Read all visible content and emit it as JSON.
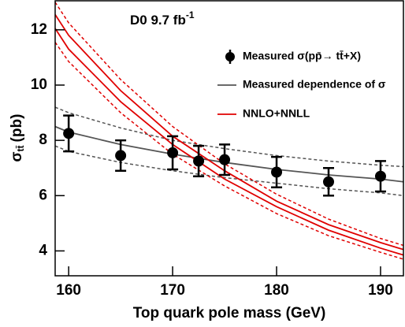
{
  "chart_data": {
    "type": "line",
    "title": "D0 9.7 fb",
    "title_superscript": "-1",
    "x_label": "Top quark pole mass (GeV)",
    "y_label": {
      "symbol": "σ",
      "subscript": "tt̄",
      "unit": "(pb)"
    },
    "xlim": [
      158.7,
      192.2
    ],
    "ylim": [
      3.1,
      13.05
    ],
    "xticks": [
      160,
      170,
      180,
      190
    ],
    "yticks": [
      4,
      6,
      8,
      10,
      12
    ],
    "points": {
      "name": "Measured σ(pp̄→ tt̄+X)",
      "color": "#000000",
      "x": [
        160,
        165,
        170,
        172.5,
        175,
        180,
        185,
        190
      ],
      "values": [
        8.25,
        7.45,
        7.55,
        7.25,
        7.3,
        6.85,
        6.5,
        6.7
      ],
      "errors": [
        0.65,
        0.55,
        0.6,
        0.55,
        0.55,
        0.55,
        0.5,
        0.55
      ]
    },
    "curve_x": [
      158.7,
      160,
      165,
      170,
      175,
      180,
      185,
      190,
      192.2
    ],
    "series": [
      {
        "name": "Measured dependence of σ",
        "color": "#555555",
        "dashed": false,
        "values": [
          8.5,
          8.3,
          7.85,
          7.5,
          7.2,
          6.95,
          6.75,
          6.6,
          6.5
        ]
      },
      {
        "color": "#555555",
        "dashed": true,
        "values": [
          9.2,
          9.0,
          8.45,
          8.0,
          7.7,
          7.45,
          7.25,
          7.1,
          7.05
        ]
      },
      {
        "color": "#555555",
        "dashed": true,
        "values": [
          7.8,
          7.6,
          7.2,
          6.9,
          6.65,
          6.45,
          6.25,
          6.1,
          6.0
        ]
      },
      {
        "name": "NNLO+NNLL",
        "color": "#e00000",
        "dashed": false,
        "values": [
          12.55,
          11.8,
          9.8,
          8.15,
          6.9,
          5.8,
          4.95,
          4.3,
          4.05
        ]
      },
      {
        "color": "#e00000",
        "dashed": false,
        "values": [
          12.05,
          11.3,
          9.4,
          7.85,
          6.6,
          5.6,
          4.75,
          4.1,
          3.85
        ]
      },
      {
        "color": "#e00000",
        "dashed": true,
        "values": [
          13.0,
          12.25,
          10.2,
          8.5,
          7.15,
          6.05,
          5.15,
          4.45,
          4.2
        ]
      },
      {
        "color": "#e00000",
        "dashed": true,
        "values": [
          11.55,
          10.85,
          9.0,
          7.5,
          6.35,
          5.35,
          4.55,
          3.95,
          3.7
        ]
      }
    ]
  }
}
